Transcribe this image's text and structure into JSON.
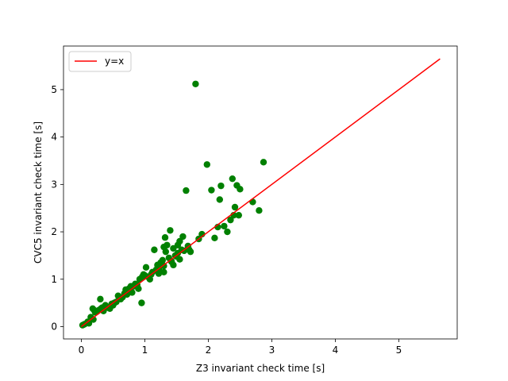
{
  "chart_data": {
    "type": "scatter",
    "title": "",
    "xlabel": "Z3 invariant check time [s]",
    "ylabel": "CVC5 invariant check time [s]",
    "xlim": [
      -0.28,
      5.92
    ],
    "ylim": [
      -0.26,
      5.92
    ],
    "xticks": [
      0,
      1,
      2,
      3,
      4,
      5
    ],
    "yticks": [
      0,
      1,
      2,
      3,
      4,
      5
    ],
    "grid": false,
    "legend": {
      "placement": "top-left",
      "entries": [
        "y=x"
      ]
    },
    "colors": {
      "points": "#008000",
      "reference_line": "#ff0000"
    },
    "reference_line": {
      "name": "y=x",
      "x": [
        0,
        5.65
      ],
      "y": [
        0,
        5.65
      ]
    },
    "series": [
      {
        "x": [
          0.02,
          0.05,
          0.1,
          0.12,
          0.15,
          0.18,
          0.19,
          0.2,
          0.22,
          0.25,
          0.28,
          0.3,
          0.31,
          0.33,
          0.35,
          0.38,
          0.4,
          0.42,
          0.45,
          0.48,
          0.5,
          0.52,
          0.55,
          0.58,
          0.6,
          0.62,
          0.65,
          0.68,
          0.7,
          0.72,
          0.75,
          0.78,
          0.8,
          0.82,
          0.85,
          0.88,
          0.9,
          0.92,
          0.95,
          0.96,
          0.98,
          1.0,
          1.02,
          1.05,
          1.08,
          1.1,
          1.12,
          1.15,
          1.18,
          1.2,
          1.22,
          1.25,
          1.28,
          1.3,
          1.32,
          1.33,
          1.35,
          1.38,
          1.4,
          1.42,
          1.45,
          1.48,
          1.5,
          1.52,
          1.55,
          1.58,
          1.6,
          1.62,
          1.65,
          1.68,
          1.7,
          1.72,
          1.8,
          1.85,
          1.9,
          1.98,
          2.05,
          2.1,
          2.15,
          2.18,
          2.2,
          2.25,
          2.3,
          2.35,
          2.38,
          2.4,
          2.42,
          2.45,
          2.48,
          2.5,
          2.7,
          2.8,
          2.87,
          1.3,
          1.22,
          1.42,
          1.3,
          1.52,
          1.45,
          1.55
        ],
        "y": [
          0.03,
          0.05,
          0.1,
          0.07,
          0.2,
          0.38,
          0.15,
          0.35,
          0.3,
          0.32,
          0.35,
          0.58,
          0.38,
          0.4,
          0.33,
          0.45,
          0.42,
          0.4,
          0.38,
          0.48,
          0.45,
          0.5,
          0.52,
          0.65,
          0.6,
          0.58,
          0.62,
          0.7,
          0.78,
          0.68,
          0.8,
          0.85,
          0.72,
          0.85,
          0.9,
          0.88,
          0.8,
          1.0,
          0.5,
          1.05,
          1.1,
          1.08,
          1.25,
          1.05,
          1.0,
          1.1,
          1.15,
          1.62,
          1.2,
          1.3,
          1.22,
          1.35,
          1.4,
          1.15,
          1.88,
          1.58,
          1.72,
          1.45,
          2.03,
          1.38,
          1.65,
          1.5,
          1.48,
          1.55,
          1.8,
          1.62,
          1.9,
          1.6,
          2.87,
          1.7,
          1.62,
          1.58,
          5.12,
          1.85,
          1.95,
          3.42,
          2.88,
          1.87,
          2.1,
          2.68,
          2.97,
          2.12,
          2.0,
          2.25,
          3.12,
          2.35,
          2.52,
          2.98,
          2.35,
          2.9,
          2.63,
          2.45,
          3.47,
          1.28,
          1.12,
          1.37,
          1.68,
          1.72,
          1.3,
          1.42
        ]
      }
    ]
  }
}
